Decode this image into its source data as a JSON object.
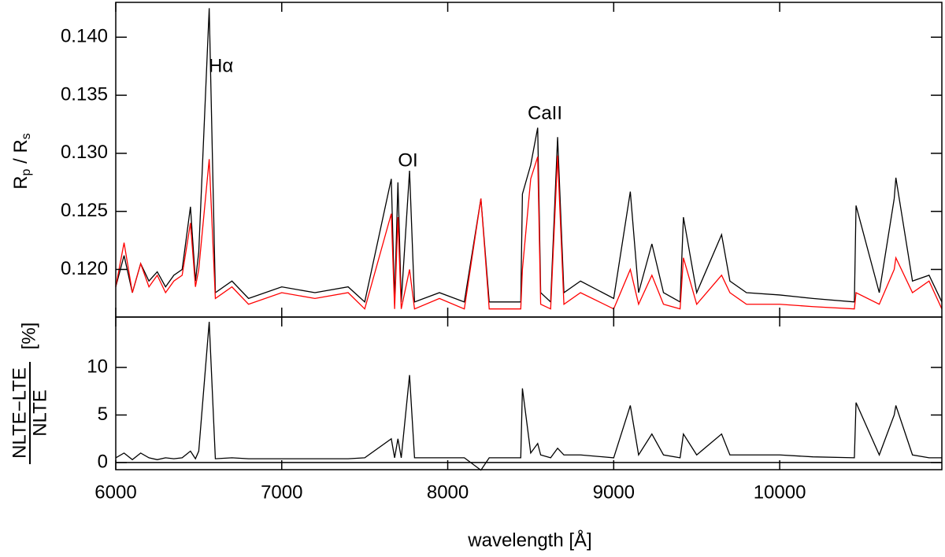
{
  "chart_data": [
    {
      "type": "line",
      "y_label": [
        "R",
        "p",
        " / R",
        "s"
      ],
      "annotations": [
        "Hα",
        "OI",
        "CaII"
      ],
      "x": [
        6000,
        6050,
        6100,
        6150,
        6200,
        6250,
        6300,
        6350,
        6400,
        6450,
        6480,
        6500,
        6563,
        6600,
        6700,
        6800,
        7000,
        7200,
        7400,
        7500,
        7660,
        7680,
        7700,
        7720,
        7770,
        7800,
        7950,
        8100,
        8200,
        8250,
        8440,
        8450,
        8500,
        8542,
        8560,
        8620,
        8662,
        8700,
        8800,
        9000,
        9100,
        9150,
        9230,
        9300,
        9400,
        9420,
        9500,
        9650,
        9700,
        9800,
        10000,
        10200,
        10450,
        10460,
        10600,
        10690,
        10700,
        10800,
        10900,
        10977
      ],
      "series": [
        {
          "color": "#000000",
          "values": [
            0.1185,
            0.1212,
            0.118,
            0.1205,
            0.119,
            0.1198,
            0.1185,
            0.1195,
            0.12,
            0.1254,
            0.119,
            0.1215,
            0.1425,
            0.118,
            0.119,
            0.1175,
            0.1185,
            0.118,
            0.1185,
            0.1172,
            0.1278,
            0.1172,
            0.1275,
            0.1172,
            0.1285,
            0.1172,
            0.118,
            0.1172,
            0.1261,
            0.1172,
            0.1172,
            0.1265,
            0.129,
            0.1322,
            0.118,
            0.1172,
            0.1314,
            0.118,
            0.119,
            0.1175,
            0.1267,
            0.118,
            0.1222,
            0.118,
            0.1172,
            0.1245,
            0.118,
            0.123,
            0.119,
            0.118,
            0.1178,
            0.1175,
            0.1172,
            0.1255,
            0.118,
            0.1261,
            0.1279,
            0.119,
            0.1195,
            0.1172
          ]
        },
        {
          "color": "#ff0000",
          "values": [
            0.1185,
            0.1223,
            0.118,
            0.1205,
            0.1185,
            0.1195,
            0.118,
            0.119,
            0.1195,
            0.124,
            0.1185,
            0.12,
            0.1295,
            0.1175,
            0.1185,
            0.117,
            0.118,
            0.1175,
            0.118,
            0.1166,
            0.1248,
            0.1166,
            0.1245,
            0.1166,
            0.12,
            0.1166,
            0.1175,
            0.1166,
            0.1261,
            0.1166,
            0.1166,
            0.12,
            0.1278,
            0.1297,
            0.117,
            0.1166,
            0.1298,
            0.117,
            0.118,
            0.1166,
            0.12,
            0.117,
            0.1195,
            0.117,
            0.1166,
            0.121,
            0.117,
            0.1195,
            0.118,
            0.117,
            0.117,
            0.1168,
            0.1166,
            0.118,
            0.117,
            0.12,
            0.121,
            0.118,
            0.119,
            0.1166
          ]
        }
      ],
      "ylim": [
        0.1159,
        0.143
      ],
      "yticks": [
        {
          "value": 0.12,
          "label": "0.120"
        },
        {
          "value": 0.125,
          "label": "0.125"
        },
        {
          "value": 0.13,
          "label": "0.130"
        },
        {
          "value": 0.135,
          "label": "0.135"
        },
        {
          "value": 0.14,
          "label": "0.140"
        }
      ]
    },
    {
      "type": "line",
      "x_label": "wavelength [Å]",
      "y_label_numerator": "NLTE−LTE",
      "y_label_denominator": "NLTE",
      "y_label_unit": "[%]",
      "x": [
        6000,
        6050,
        6100,
        6150,
        6200,
        6250,
        6300,
        6350,
        6400,
        6450,
        6480,
        6500,
        6563,
        6600,
        6700,
        6800,
        7000,
        7200,
        7400,
        7500,
        7660,
        7680,
        7700,
        7720,
        7770,
        7800,
        7950,
        8100,
        8200,
        8250,
        8440,
        8450,
        8500,
        8542,
        8560,
        8620,
        8662,
        8700,
        8800,
        9000,
        9100,
        9150,
        9230,
        9300,
        9400,
        9420,
        9500,
        9650,
        9700,
        9800,
        10000,
        10200,
        10450,
        10460,
        10600,
        10690,
        10700,
        10800,
        10900,
        10977
      ],
      "series": [
        {
          "color": "#000000",
          "values": [
            0.5,
            1,
            0.3,
            1,
            0.5,
            0.3,
            0.5,
            0.4,
            0.5,
            1.2,
            0.4,
            1.2,
            14.8,
            0.4,
            0.5,
            0.4,
            0.4,
            0.4,
            0.4,
            0.5,
            2.5,
            0.5,
            2.5,
            0.5,
            9.2,
            0.5,
            0.5,
            0.5,
            -0.8,
            0.5,
            0.5,
            7.8,
            1,
            2,
            0.8,
            0.5,
            1.5,
            0.8,
            0.8,
            0.5,
            6,
            0.8,
            3,
            0.8,
            0.5,
            3,
            0.8,
            3,
            0.8,
            0.8,
            0.8,
            0.6,
            0.5,
            6.3,
            0.8,
            5,
            6,
            0.8,
            0.5,
            0.5
          ]
        }
      ],
      "xlim": [
        6000,
        10977
      ],
      "xticks": [
        6000,
        7000,
        8000,
        9000,
        10000
      ],
      "ylim": [
        -0.75,
        15.3
      ],
      "yticks": [
        0,
        5,
        10
      ]
    }
  ]
}
